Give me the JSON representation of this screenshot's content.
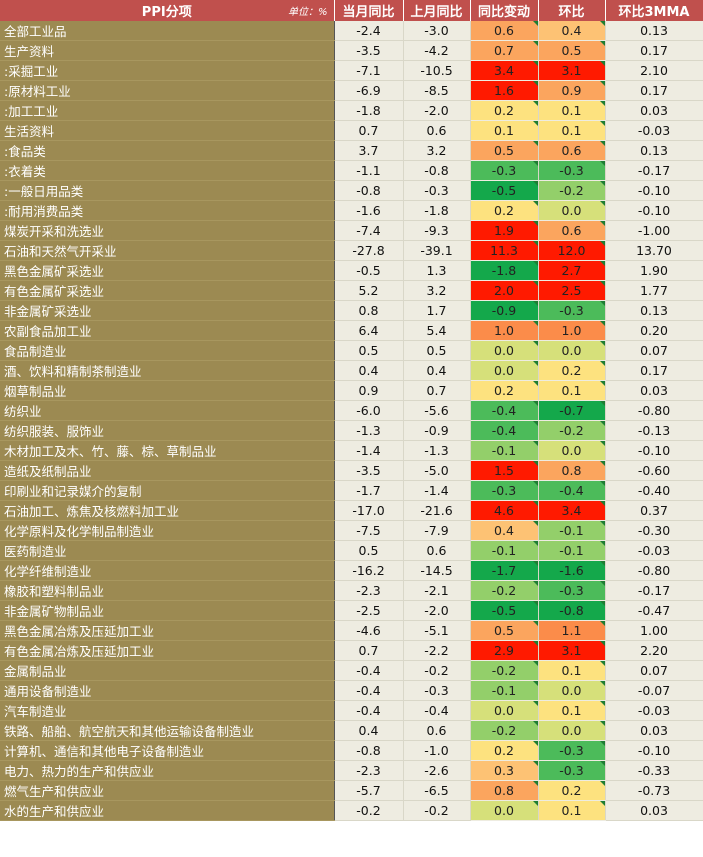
{
  "header": {
    "col0": "PPI分项",
    "unit": "单位：%",
    "col1": "当月同比",
    "col2": "上月同比",
    "col3": "同比变动",
    "col4": "环比",
    "col5": "环比3MMA"
  },
  "colors": {
    "header_bg": "#c0504d",
    "name_bg": "#9c8a52",
    "value_bg": "#eeece1",
    "heat_red": "#ff1a00",
    "heat_orange": "#fb9a57",
    "heat_yellow": "#fde980",
    "heat_green": "#14a84b"
  },
  "rows": [
    {
      "name": "全部工业品",
      "cur": "-2.4",
      "prev": "-3.0",
      "chg": "0.6",
      "mom": "0.4",
      "mma": "0.13",
      "group_start": false
    },
    {
      "name": "生产资料",
      "cur": "-3.5",
      "prev": "-4.2",
      "chg": "0.7",
      "mom": "0.5",
      "mma": "0.17",
      "group_start": true
    },
    {
      "name": " :采掘工业",
      "cur": "-7.1",
      "prev": "-10.5",
      "chg": "3.4",
      "mom": "3.1",
      "mma": "2.10",
      "group_start": false
    },
    {
      "name": " :原材料工业",
      "cur": "-6.9",
      "prev": "-8.5",
      "chg": "1.6",
      "mom": "0.9",
      "mma": "0.17",
      "group_start": false
    },
    {
      "name": " :加工工业",
      "cur": "-1.8",
      "prev": "-2.0",
      "chg": "0.2",
      "mom": "0.1",
      "mma": "0.03",
      "group_start": false
    },
    {
      "name": "生活资料",
      "cur": "0.7",
      "prev": "0.6",
      "chg": "0.1",
      "mom": "0.1",
      "mma": "-0.03",
      "group_start": true
    },
    {
      "name": " :食品类",
      "cur": "3.7",
      "prev": "3.2",
      "chg": "0.5",
      "mom": "0.6",
      "mma": "0.13",
      "group_start": false
    },
    {
      "name": " :衣着类",
      "cur": "-1.1",
      "prev": "-0.8",
      "chg": "-0.3",
      "mom": "-0.3",
      "mma": "-0.17",
      "group_start": false
    },
    {
      "name": " :一般日用品类",
      "cur": "-0.8",
      "prev": "-0.3",
      "chg": "-0.5",
      "mom": "-0.2",
      "mma": "-0.10",
      "group_start": false
    },
    {
      "name": " :耐用消费品类",
      "cur": "-1.6",
      "prev": "-1.8",
      "chg": "0.2",
      "mom": "0.0",
      "mma": "-0.10",
      "group_start": false
    },
    {
      "name": "煤炭开采和洗选业",
      "cur": "-7.4",
      "prev": "-9.3",
      "chg": "1.9",
      "mom": "0.6",
      "mma": "-1.00",
      "group_start": true
    },
    {
      "name": "石油和天然气开采业",
      "cur": "-27.8",
      "prev": "-39.1",
      "chg": "11.3",
      "mom": "12.0",
      "mma": "13.70",
      "group_start": false
    },
    {
      "name": "黑色金属矿采选业",
      "cur": "-0.5",
      "prev": "1.3",
      "chg": "-1.8",
      "mom": "2.7",
      "mma": "1.90",
      "group_start": false
    },
    {
      "name": "有色金属矿采选业",
      "cur": "5.2",
      "prev": "3.2",
      "chg": "2.0",
      "mom": "2.5",
      "mma": "1.77",
      "group_start": false
    },
    {
      "name": "非金属矿采选业",
      "cur": "0.8",
      "prev": "1.7",
      "chg": "-0.9",
      "mom": "-0.3",
      "mma": "0.13",
      "group_start": false
    },
    {
      "name": "农副食品加工业",
      "cur": "6.4",
      "prev": "5.4",
      "chg": "1.0",
      "mom": "1.0",
      "mma": "0.20",
      "group_start": false
    },
    {
      "name": "食品制造业",
      "cur": "0.5",
      "prev": "0.5",
      "chg": "0.0",
      "mom": "0.0",
      "mma": "0.07",
      "group_start": false
    },
    {
      "name": "酒、饮料和精制茶制造业",
      "cur": "0.4",
      "prev": "0.4",
      "chg": "0.0",
      "mom": "0.2",
      "mma": "0.17",
      "group_start": false
    },
    {
      "name": "烟草制品业",
      "cur": "0.9",
      "prev": "0.7",
      "chg": "0.2",
      "mom": "0.1",
      "mma": "0.03",
      "group_start": false
    },
    {
      "name": "纺织业",
      "cur": "-6.0",
      "prev": "-5.6",
      "chg": "-0.4",
      "mom": "-0.7",
      "mma": "-0.80",
      "group_start": false
    },
    {
      "name": "纺织服装、服饰业",
      "cur": "-1.3",
      "prev": "-0.9",
      "chg": "-0.4",
      "mom": "-0.2",
      "mma": "-0.13",
      "group_start": false
    },
    {
      "name": "木材加工及木、竹、藤、棕、草制品业",
      "cur": "-1.4",
      "prev": "-1.3",
      "chg": "-0.1",
      "mom": "0.0",
      "mma": "-0.10",
      "group_start": false
    },
    {
      "name": "造纸及纸制品业",
      "cur": "-3.5",
      "prev": "-5.0",
      "chg": "1.5",
      "mom": "0.8",
      "mma": "-0.60",
      "group_start": false
    },
    {
      "name": "印刷业和记录媒介的复制",
      "cur": "-1.7",
      "prev": "-1.4",
      "chg": "-0.3",
      "mom": "-0.4",
      "mma": "-0.40",
      "group_start": false
    },
    {
      "name": "石油加工、炼焦及核燃料加工业",
      "cur": "-17.0",
      "prev": "-21.6",
      "chg": "4.6",
      "mom": "3.4",
      "mma": "0.37",
      "group_start": false
    },
    {
      "name": "化学原料及化学制品制造业",
      "cur": "-7.5",
      "prev": "-7.9",
      "chg": "0.4",
      "mom": "-0.1",
      "mma": "-0.30",
      "group_start": false
    },
    {
      "name": "医药制造业",
      "cur": "0.5",
      "prev": "0.6",
      "chg": "-0.1",
      "mom": "-0.1",
      "mma": "-0.03",
      "group_start": false
    },
    {
      "name": "化学纤维制造业",
      "cur": "-16.2",
      "prev": "-14.5",
      "chg": "-1.7",
      "mom": "-1.6",
      "mma": "-0.80",
      "group_start": false
    },
    {
      "name": "橡胶和塑料制品业",
      "cur": "-2.3",
      "prev": "-2.1",
      "chg": "-0.2",
      "mom": "-0.3",
      "mma": "-0.17",
      "group_start": false
    },
    {
      "name": "非金属矿物制品业",
      "cur": "-2.5",
      "prev": "-2.0",
      "chg": "-0.5",
      "mom": "-0.8",
      "mma": "-0.47",
      "group_start": false
    },
    {
      "name": "黑色金属冶炼及压延加工业",
      "cur": "-4.6",
      "prev": "-5.1",
      "chg": "0.5",
      "mom": "1.1",
      "mma": "1.00",
      "group_start": false
    },
    {
      "name": "有色金属冶炼及压延加工业",
      "cur": "0.7",
      "prev": "-2.2",
      "chg": "2.9",
      "mom": "3.1",
      "mma": "2.20",
      "group_start": false
    },
    {
      "name": "金属制品业",
      "cur": "-0.4",
      "prev": "-0.2",
      "chg": "-0.2",
      "mom": "0.1",
      "mma": "0.07",
      "group_start": false
    },
    {
      "name": "通用设备制造业",
      "cur": "-0.4",
      "prev": "-0.3",
      "chg": "-0.1",
      "mom": "0.0",
      "mma": "-0.07",
      "group_start": false
    },
    {
      "name": "汽车制造业",
      "cur": "-0.4",
      "prev": "-0.4",
      "chg": "0.0",
      "mom": "0.1",
      "mma": "-0.03",
      "group_start": false
    },
    {
      "name": "铁路、船舶、航空航天和其他运输设备制造业",
      "cur": "0.4",
      "prev": "0.6",
      "chg": "-0.2",
      "mom": "0.0",
      "mma": "0.03",
      "group_start": false
    },
    {
      "name": "计算机、通信和其他电子设备制造业",
      "cur": "-0.8",
      "prev": "-1.0",
      "chg": "0.2",
      "mom": "-0.3",
      "mma": "-0.10",
      "group_start": false
    },
    {
      "name": "电力、热力的生产和供应业",
      "cur": "-2.3",
      "prev": "-2.6",
      "chg": "0.3",
      "mom": "-0.3",
      "mma": "-0.33",
      "group_start": false
    },
    {
      "name": "燃气生产和供应业",
      "cur": "-5.7",
      "prev": "-6.5",
      "chg": "0.8",
      "mom": "0.2",
      "mma": "-0.73",
      "group_start": false
    },
    {
      "name": "水的生产和供应业",
      "cur": "-0.2",
      "prev": "-0.2",
      "chg": "0.0",
      "mom": "0.1",
      "mma": "0.03",
      "group_start": false
    }
  ]
}
